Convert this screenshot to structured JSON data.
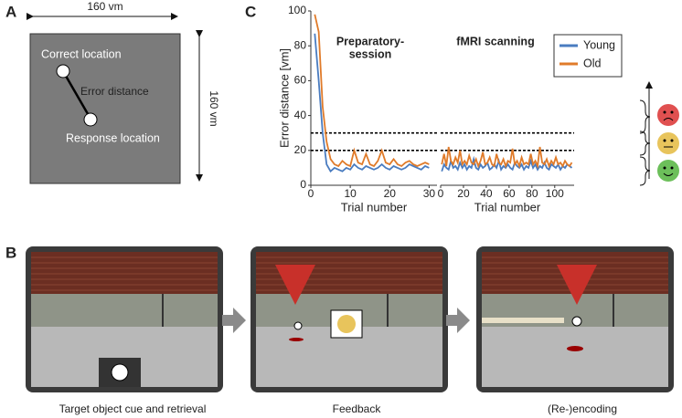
{
  "panel_a": {
    "label": "A",
    "width_label": "160 vm",
    "height_label": "160 vm",
    "correct": "Correct location",
    "error": "Error distance",
    "response": "Response location"
  },
  "panel_b": {
    "label": "B",
    "captions": [
      "Target object cue and retrieval",
      "Feedback",
      "(Re-)encoding"
    ]
  },
  "panel_c": {
    "label": "C"
  },
  "chart_data": [
    {
      "type": "line",
      "title": [
        "Preparatory-",
        "session"
      ],
      "y_label": "Error distance [vm]",
      "x_label": "Trial number",
      "x": [
        1,
        2,
        3,
        4,
        5,
        6,
        7,
        8,
        9,
        10,
        11,
        12,
        13,
        14,
        15,
        16,
        17,
        18,
        19,
        20,
        21,
        22,
        23,
        24,
        25,
        26,
        27,
        28,
        29,
        30
      ],
      "xlim": [
        0,
        32
      ],
      "xticks": [
        0,
        10,
        20,
        30
      ],
      "ylim": [
        0,
        100
      ],
      "yticks": [
        0,
        20,
        40,
        60,
        80,
        100
      ],
      "reference_lines": [
        20,
        30
      ],
      "series": [
        {
          "color": "#4a7cc0",
          "values": [
            87,
            60,
            30,
            12,
            8,
            10,
            9,
            8,
            10,
            9,
            12,
            10,
            9,
            11,
            10,
            9,
            10,
            12,
            10,
            9,
            11,
            10,
            9,
            10,
            12,
            11,
            10,
            9,
            11,
            10
          ]
        },
        {
          "color": "#e07b2a",
          "values": [
            98,
            88,
            45,
            25,
            15,
            12,
            11,
            14,
            12,
            11,
            20,
            13,
            12,
            18,
            12,
            11,
            14,
            20,
            13,
            12,
            15,
            12,
            11,
            13,
            14,
            12,
            11,
            12,
            13,
            12
          ]
        }
      ]
    },
    {
      "type": "line",
      "title": [
        "fMRI scanning"
      ],
      "x_label": "Trial number",
      "x": [
        1,
        3,
        5,
        7,
        9,
        11,
        13,
        15,
        17,
        19,
        21,
        23,
        25,
        27,
        29,
        31,
        33,
        35,
        37,
        39,
        41,
        43,
        45,
        47,
        49,
        51,
        53,
        55,
        57,
        59,
        61,
        63,
        65,
        67,
        69,
        71,
        73,
        75,
        77,
        79,
        81,
        83,
        85,
        87,
        89,
        91,
        93,
        95,
        97,
        99,
        101,
        103,
        105,
        107,
        109,
        111,
        113,
        115
      ],
      "xlim": [
        0,
        117
      ],
      "xticks": [
        0,
        20,
        40,
        60,
        80,
        100
      ],
      "ylim": [
        0,
        100
      ],
      "reference_lines": [
        20,
        30
      ],
      "legend": "upper right",
      "series": [
        {
          "name": "Young",
          "color": "#4a7cc0",
          "values": [
            8,
            12,
            10,
            9,
            14,
            10,
            11,
            9,
            13,
            10,
            12,
            9,
            11,
            10,
            15,
            10,
            9,
            12,
            10,
            11,
            13,
            9,
            10,
            12,
            10,
            14,
            9,
            11,
            10,
            12,
            10,
            9,
            13,
            11,
            10,
            12,
            9,
            11,
            10,
            14,
            10,
            12,
            9,
            11,
            10,
            13,
            10,
            9,
            12,
            11,
            10,
            12,
            9,
            11,
            10,
            12,
            11,
            10
          ]
        },
        {
          "name": "Old",
          "color": "#e07b2a",
          "values": [
            12,
            18,
            11,
            22,
            14,
            12,
            16,
            13,
            20,
            12,
            14,
            12,
            17,
            13,
            12,
            15,
            11,
            14,
            19,
            12,
            13,
            16,
            12,
            11,
            18,
            13,
            12,
            15,
            11,
            14,
            13,
            21,
            12,
            14,
            11,
            16,
            12,
            13,
            12,
            18,
            12,
            14,
            11,
            22,
            13,
            12,
            15,
            11,
            14,
            12,
            16,
            12,
            13,
            11,
            14,
            12,
            11,
            13
          ]
        }
      ]
    }
  ]
}
